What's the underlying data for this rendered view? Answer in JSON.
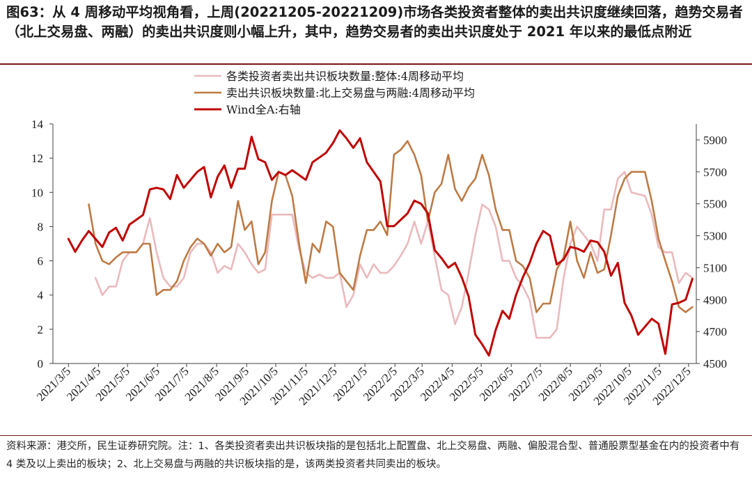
{
  "title": "图63：从 4 周移动平均视角看，上周(20221205-20221209)市场各类投资者整体的卖出共识度继续回落，趋势交易者（北上交易盘、两融）的卖出共识度则小幅上升，其中，趋势交易者的卖出共识度处于 2021 年以来的最低点附近",
  "footnote": "资料来源：港交所，民生证券研究院。注：1、各类投资者卖出共识板块指的是包括北上配置盘、北上交易盘、两融、偏股混合型、普通股票型基金在内的投资者中有 4 类及以上卖出的板块；2、北上交易盘与两融的共识板块指的是，该两类投资者共同卖出的板块。",
  "chart_data": {
    "type": "line",
    "x_tick_labels": [
      "2021/3/5",
      "2021/4/5",
      "2021/5/5",
      "2021/6/5",
      "2021/7/5",
      "2021/8/5",
      "2021/9/5",
      "2021/10/5",
      "2021/11/5",
      "2021/12/5",
      "2022/1/5",
      "2022/2/5",
      "2022/3/5",
      "2022/4/5",
      "2022/5/5",
      "2022/6/5",
      "2022/7/5",
      "2022/8/5",
      "2022/9/5",
      "2022/10/5",
      "2022/11/5",
      "2022/12/5"
    ],
    "x_range": [
      "2021/3/5",
      "2022/12/9"
    ],
    "y_left": {
      "ticks": [
        "0",
        "2",
        "4",
        "6",
        "8",
        "10",
        "12",
        "14"
      ],
      "min": 0,
      "max": 14
    },
    "y_right": {
      "ticks": [
        "4500",
        "4700",
        "4900",
        "5100",
        "5300",
        "5500",
        "5700",
        "5900"
      ],
      "min": 4500,
      "max": 6000
    },
    "grid": false,
    "legend_position": "top-center",
    "series": [
      {
        "name": "各类投资者卖出共识板块数量:整体:4周移动平均",
        "color": "#eab9bd",
        "axis": "left",
        "points": [
          [
            "2021/4/2",
            5.0
          ],
          [
            "2021/4/9",
            4.0
          ],
          [
            "2021/4/16",
            4.5
          ],
          [
            "2021/4/23",
            4.5
          ],
          [
            "2021/4/30",
            6.0
          ],
          [
            "2021/5/7",
            6.5
          ],
          [
            "2021/5/14",
            6.5
          ],
          [
            "2021/5/21",
            7.0
          ],
          [
            "2021/5/28",
            8.5
          ],
          [
            "2021/6/4",
            6.5
          ],
          [
            "2021/6/11",
            5.0
          ],
          [
            "2021/6/18",
            4.5
          ],
          [
            "2021/6/25",
            4.5
          ],
          [
            "2021/7/2",
            5.0
          ],
          [
            "2021/7/9",
            6.5
          ],
          [
            "2021/7/16",
            7.0
          ],
          [
            "2021/7/23",
            7.0
          ],
          [
            "2021/7/30",
            6.5
          ],
          [
            "2021/8/6",
            5.3
          ],
          [
            "2021/8/13",
            5.7
          ],
          [
            "2021/8/20",
            5.5
          ],
          [
            "2021/8/27",
            7.0
          ],
          [
            "2021/9/3",
            6.5
          ],
          [
            "2021/9/10",
            5.8
          ],
          [
            "2021/9/17",
            5.3
          ],
          [
            "2021/9/24",
            5.5
          ],
          [
            "2021/10/1",
            8.7
          ],
          [
            "2021/10/8",
            8.7
          ],
          [
            "2021/10/15",
            8.7
          ],
          [
            "2021/10/22",
            8.7
          ],
          [
            "2021/10/29",
            6.7
          ],
          [
            "2021/11/5",
            5.3
          ],
          [
            "2021/11/12",
            5.0
          ],
          [
            "2021/11/19",
            5.2
          ],
          [
            "2021/11/26",
            5.0
          ],
          [
            "2021/12/3",
            5.0
          ],
          [
            "2021/12/10",
            5.3
          ],
          [
            "2021/12/17",
            3.3
          ],
          [
            "2021/12/24",
            4.0
          ],
          [
            "2021/12/31",
            5.8
          ],
          [
            "2022/1/7",
            5.0
          ],
          [
            "2022/1/14",
            5.8
          ],
          [
            "2022/1/21",
            5.3
          ],
          [
            "2022/1/28",
            5.3
          ],
          [
            "2022/2/4",
            5.7
          ],
          [
            "2022/2/11",
            6.3
          ],
          [
            "2022/2/18",
            7.0
          ],
          [
            "2022/2/25",
            8.3
          ],
          [
            "2022/3/4",
            7.0
          ],
          [
            "2022/3/11",
            8.3
          ],
          [
            "2022/3/18",
            6.3
          ],
          [
            "2022/3/25",
            4.3
          ],
          [
            "2022/4/1",
            4.0
          ],
          [
            "2022/4/8",
            2.3
          ],
          [
            "2022/4/15",
            3.3
          ],
          [
            "2022/4/22",
            5.3
          ],
          [
            "2022/4/29",
            7.5
          ],
          [
            "2022/5/6",
            9.3
          ],
          [
            "2022/5/13",
            9.0
          ],
          [
            "2022/5/20",
            8.0
          ],
          [
            "2022/5/27",
            6.0
          ],
          [
            "2022/6/3",
            6.0
          ],
          [
            "2022/6/10",
            5.0
          ],
          [
            "2022/6/17",
            4.5
          ],
          [
            "2022/6/24",
            3.7
          ],
          [
            "2022/7/1",
            1.5
          ],
          [
            "2022/7/8",
            1.5
          ],
          [
            "2022/7/15",
            1.5
          ],
          [
            "2022/7/22",
            2.0
          ],
          [
            "2022/7/29",
            5.0
          ],
          [
            "2022/8/5",
            7.0
          ],
          [
            "2022/8/12",
            8.0
          ],
          [
            "2022/8/19",
            7.5
          ],
          [
            "2022/8/26",
            7.0
          ],
          [
            "2022/9/2",
            6.0
          ],
          [
            "2022/9/9",
            9.0
          ],
          [
            "2022/9/16",
            9.0
          ],
          [
            "2022/9/23",
            10.8
          ],
          [
            "2022/9/30",
            11.2
          ],
          [
            "2022/10/7",
            10.0
          ],
          [
            "2022/10/14",
            9.9
          ],
          [
            "2022/10/21",
            9.8
          ],
          [
            "2022/10/28",
            8.7
          ],
          [
            "2022/11/4",
            6.8
          ],
          [
            "2022/11/11",
            6.5
          ],
          [
            "2022/11/18",
            6.5
          ],
          [
            "2022/11/25",
            4.7
          ],
          [
            "2022/12/2",
            5.3
          ],
          [
            "2022/12/9",
            5.0
          ]
        ]
      },
      {
        "name": "卖出共识板块数量:北上交易盘与两融:4周移动平均",
        "color": "#bd7a44",
        "axis": "left",
        "points": [
          [
            "2021/3/26",
            9.3
          ],
          [
            "2021/4/2",
            7.0
          ],
          [
            "2021/4/9",
            6.0
          ],
          [
            "2021/4/16",
            5.8
          ],
          [
            "2021/4/23",
            6.2
          ],
          [
            "2021/4/30",
            6.5
          ],
          [
            "2021/5/7",
            6.5
          ],
          [
            "2021/5/14",
            6.5
          ],
          [
            "2021/5/21",
            7.0
          ],
          [
            "2021/5/28",
            7.0
          ],
          [
            "2021/6/4",
            4.0
          ],
          [
            "2021/6/11",
            4.3
          ],
          [
            "2021/6/18",
            4.3
          ],
          [
            "2021/6/25",
            4.8
          ],
          [
            "2021/7/2",
            6.0
          ],
          [
            "2021/7/9",
            6.8
          ],
          [
            "2021/7/16",
            7.3
          ],
          [
            "2021/7/23",
            7.0
          ],
          [
            "2021/7/30",
            6.3
          ],
          [
            "2021/8/6",
            7.0
          ],
          [
            "2021/8/13",
            6.5
          ],
          [
            "2021/8/20",
            6.8
          ],
          [
            "2021/8/27",
            9.5
          ],
          [
            "2021/9/3",
            7.8
          ],
          [
            "2021/9/10",
            8.3
          ],
          [
            "2021/9/17",
            5.8
          ],
          [
            "2021/9/24",
            6.5
          ],
          [
            "2021/10/1",
            9.5
          ],
          [
            "2021/10/8",
            11.2
          ],
          [
            "2021/10/15",
            11.0
          ],
          [
            "2021/10/22",
            9.8
          ],
          [
            "2021/10/29",
            7.0
          ],
          [
            "2021/11/5",
            4.7
          ],
          [
            "2021/11/12",
            7.0
          ],
          [
            "2021/11/19",
            6.5
          ],
          [
            "2021/11/26",
            8.3
          ],
          [
            "2021/12/3",
            8.0
          ],
          [
            "2021/12/10",
            5.3
          ],
          [
            "2021/12/17",
            4.8
          ],
          [
            "2021/12/24",
            4.3
          ],
          [
            "2021/12/31",
            6.3
          ],
          [
            "2022/1/7",
            7.8
          ],
          [
            "2022/1/14",
            7.8
          ],
          [
            "2022/1/21",
            8.3
          ],
          [
            "2022/1/28",
            7.5
          ],
          [
            "2022/2/4",
            12.2
          ],
          [
            "2022/2/11",
            12.5
          ],
          [
            "2022/2/18",
            13.0
          ],
          [
            "2022/2/25",
            12.2
          ],
          [
            "2022/3/4",
            11.0
          ],
          [
            "2022/3/11",
            8.3
          ],
          [
            "2022/3/18",
            10.0
          ],
          [
            "2022/3/25",
            10.5
          ],
          [
            "2022/4/1",
            12.2
          ],
          [
            "2022/4/8",
            10.2
          ],
          [
            "2022/4/15",
            9.5
          ],
          [
            "2022/4/22",
            10.3
          ],
          [
            "2022/4/29",
            10.8
          ],
          [
            "2022/5/6",
            12.2
          ],
          [
            "2022/5/13",
            11.0
          ],
          [
            "2022/5/20",
            9.0
          ],
          [
            "2022/5/27",
            7.8
          ],
          [
            "2022/6/3",
            7.8
          ],
          [
            "2022/6/10",
            6.0
          ],
          [
            "2022/6/17",
            5.7
          ],
          [
            "2022/6/24",
            5.0
          ],
          [
            "2022/7/1",
            3.0
          ],
          [
            "2022/7/8",
            3.5
          ],
          [
            "2022/7/15",
            3.5
          ],
          [
            "2022/7/22",
            5.5
          ],
          [
            "2022/7/29",
            6.2
          ],
          [
            "2022/8/5",
            8.3
          ],
          [
            "2022/8/12",
            6.0
          ],
          [
            "2022/8/19",
            5.0
          ],
          [
            "2022/8/26",
            6.5
          ],
          [
            "2022/9/2",
            5.3
          ],
          [
            "2022/9/9",
            5.5
          ],
          [
            "2022/9/16",
            7.5
          ],
          [
            "2022/9/23",
            9.8
          ],
          [
            "2022/9/30",
            10.8
          ],
          [
            "2022/10/7",
            11.2
          ],
          [
            "2022/10/14",
            11.2
          ],
          [
            "2022/10/21",
            11.2
          ],
          [
            "2022/10/28",
            9.5
          ],
          [
            "2022/11/4",
            7.3
          ],
          [
            "2022/11/11",
            6.0
          ],
          [
            "2022/11/18",
            4.8
          ],
          [
            "2022/11/25",
            3.3
          ],
          [
            "2022/12/2",
            3.0
          ],
          [
            "2022/12/9",
            3.3
          ]
        ]
      },
      {
        "name": "Wind全A:右轴",
        "color": "#c00000",
        "axis": "right",
        "points": [
          [
            "2021/3/5",
            5280
          ],
          [
            "2021/3/12",
            5200
          ],
          [
            "2021/3/19",
            5270
          ],
          [
            "2021/3/26",
            5330
          ],
          [
            "2021/4/2",
            5280
          ],
          [
            "2021/4/9",
            5230
          ],
          [
            "2021/4/16",
            5320
          ],
          [
            "2021/4/23",
            5350
          ],
          [
            "2021/4/30",
            5270
          ],
          [
            "2021/5/7",
            5370
          ],
          [
            "2021/5/14",
            5400
          ],
          [
            "2021/5/21",
            5430
          ],
          [
            "2021/5/28",
            5590
          ],
          [
            "2021/6/4",
            5600
          ],
          [
            "2021/6/11",
            5590
          ],
          [
            "2021/6/18",
            5530
          ],
          [
            "2021/6/25",
            5680
          ],
          [
            "2021/7/2",
            5600
          ],
          [
            "2021/7/9",
            5650
          ],
          [
            "2021/7/16",
            5700
          ],
          [
            "2021/7/23",
            5730
          ],
          [
            "2021/7/30",
            5540
          ],
          [
            "2021/8/6",
            5670
          ],
          [
            "2021/8/13",
            5740
          ],
          [
            "2021/8/20",
            5600
          ],
          [
            "2021/8/27",
            5720
          ],
          [
            "2021/9/3",
            5720
          ],
          [
            "2021/9/10",
            5920
          ],
          [
            "2021/9/17",
            5780
          ],
          [
            "2021/9/24",
            5760
          ],
          [
            "2021/10/1",
            5650
          ],
          [
            "2021/10/8",
            5700
          ],
          [
            "2021/10/15",
            5680
          ],
          [
            "2021/10/22",
            5710
          ],
          [
            "2021/10/29",
            5680
          ],
          [
            "2021/11/5",
            5650
          ],
          [
            "2021/11/12",
            5760
          ],
          [
            "2021/11/19",
            5790
          ],
          [
            "2021/11/26",
            5820
          ],
          [
            "2021/12/3",
            5880
          ],
          [
            "2021/12/10",
            5960
          ],
          [
            "2021/12/17",
            5910
          ],
          [
            "2021/12/24",
            5850
          ],
          [
            "2021/12/31",
            5910
          ],
          [
            "2022/1/7",
            5760
          ],
          [
            "2022/1/14",
            5700
          ],
          [
            "2022/1/21",
            5640
          ],
          [
            "2022/1/28",
            5360
          ],
          [
            "2022/2/4",
            5360
          ],
          [
            "2022/2/11",
            5400
          ],
          [
            "2022/2/18",
            5440
          ],
          [
            "2022/2/25",
            5520
          ],
          [
            "2022/3/4",
            5500
          ],
          [
            "2022/3/11",
            5440
          ],
          [
            "2022/3/18",
            5210
          ],
          [
            "2022/3/25",
            5160
          ],
          [
            "2022/4/1",
            5100
          ],
          [
            "2022/4/8",
            5130
          ],
          [
            "2022/4/15",
            5040
          ],
          [
            "2022/4/22",
            4920
          ],
          [
            "2022/4/29",
            4680
          ],
          [
            "2022/5/6",
            4620
          ],
          [
            "2022/5/13",
            4550
          ],
          [
            "2022/5/20",
            4710
          ],
          [
            "2022/5/27",
            4830
          ],
          [
            "2022/6/3",
            4780
          ],
          [
            "2022/6/10",
            4930
          ],
          [
            "2022/6/17",
            5040
          ],
          [
            "2022/6/24",
            5130
          ],
          [
            "2022/7/1",
            5250
          ],
          [
            "2022/7/8",
            5330
          ],
          [
            "2022/7/15",
            5300
          ],
          [
            "2022/7/22",
            5120
          ],
          [
            "2022/7/29",
            5150
          ],
          [
            "2022/8/5",
            5230
          ],
          [
            "2022/8/12",
            5220
          ],
          [
            "2022/8/19",
            5200
          ],
          [
            "2022/8/26",
            5270
          ],
          [
            "2022/9/2",
            5260
          ],
          [
            "2022/9/9",
            5200
          ],
          [
            "2022/9/16",
            5050
          ],
          [
            "2022/9/23",
            5130
          ],
          [
            "2022/9/30",
            4880
          ],
          [
            "2022/10/7",
            4800
          ],
          [
            "2022/10/14",
            4680
          ],
          [
            "2022/10/21",
            4730
          ],
          [
            "2022/10/28",
            4780
          ],
          [
            "2022/11/4",
            4750
          ],
          [
            "2022/11/11",
            4560
          ],
          [
            "2022/11/18",
            4870
          ],
          [
            "2022/11/25",
            4880
          ],
          [
            "2022/12/2",
            4900
          ],
          [
            "2022/12/9",
            5030
          ]
        ]
      }
    ]
  }
}
